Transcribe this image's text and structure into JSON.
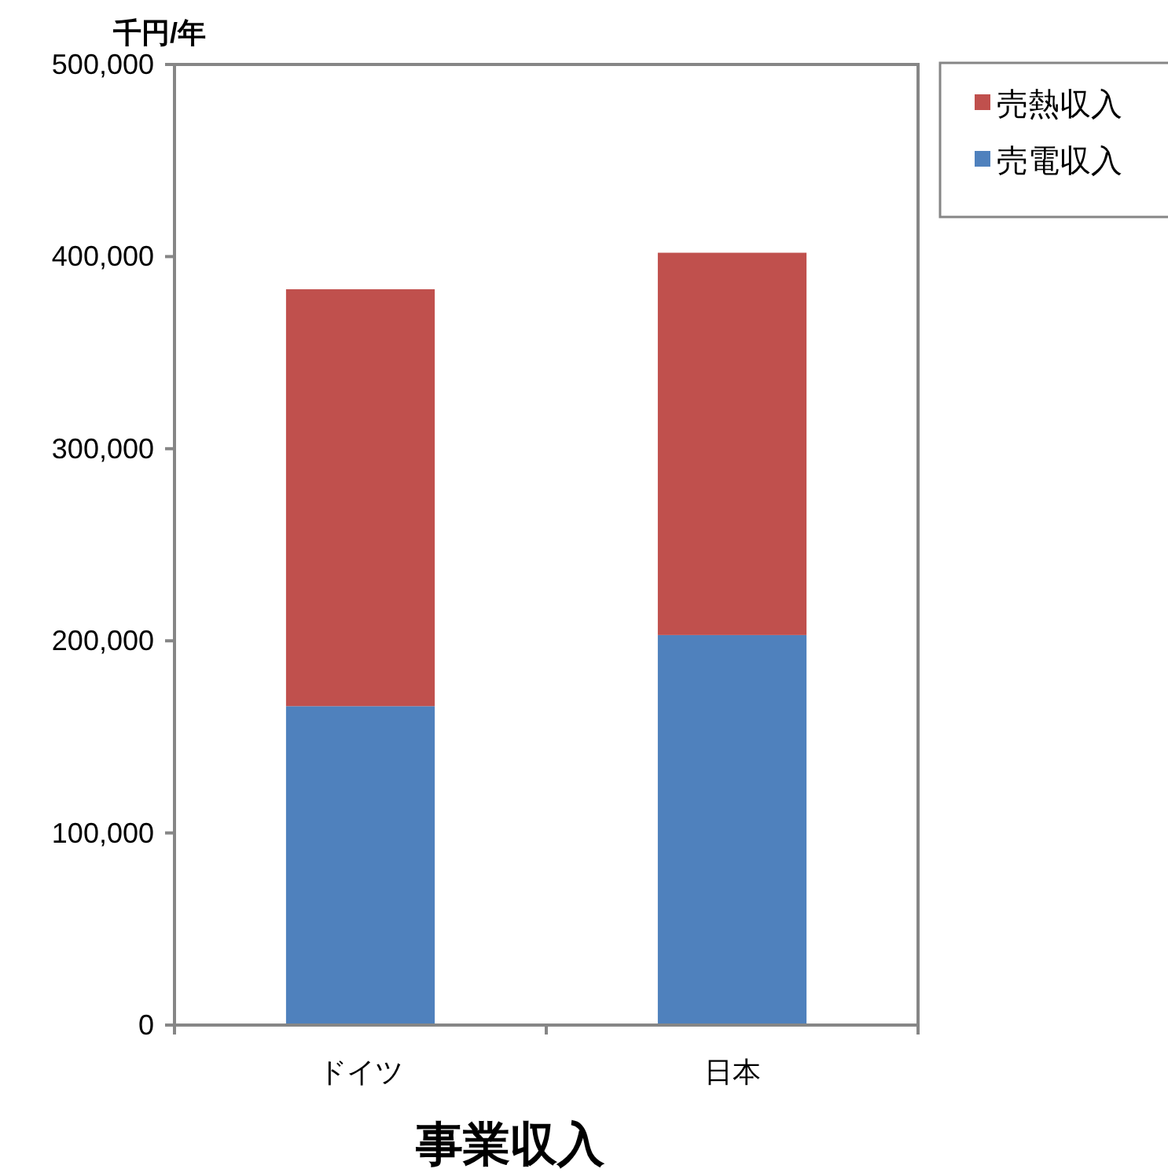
{
  "chart_data": {
    "type": "bar",
    "stacked": true,
    "title": "事業収入",
    "ylabel": "千円/年",
    "categories": [
      "ドイツ",
      "日本"
    ],
    "series": [
      {
        "name": "売電収入",
        "color": "#4f81bd",
        "values": [
          166000,
          203000
        ]
      },
      {
        "name": "売熱収入",
        "color": "#c0504d",
        "values": [
          217000,
          199000
        ]
      }
    ],
    "ylim": [
      0,
      500000
    ],
    "yticks": [
      {
        "value": 0,
        "label": "0"
      },
      {
        "value": 100000,
        "label": "100,000"
      },
      {
        "value": 200000,
        "label": "200,000"
      },
      {
        "value": 300000,
        "label": "300,000"
      },
      {
        "value": 400000,
        "label": "400,000"
      },
      {
        "value": 500000,
        "label": "500,000"
      }
    ],
    "grid": false,
    "legend": "top right"
  }
}
